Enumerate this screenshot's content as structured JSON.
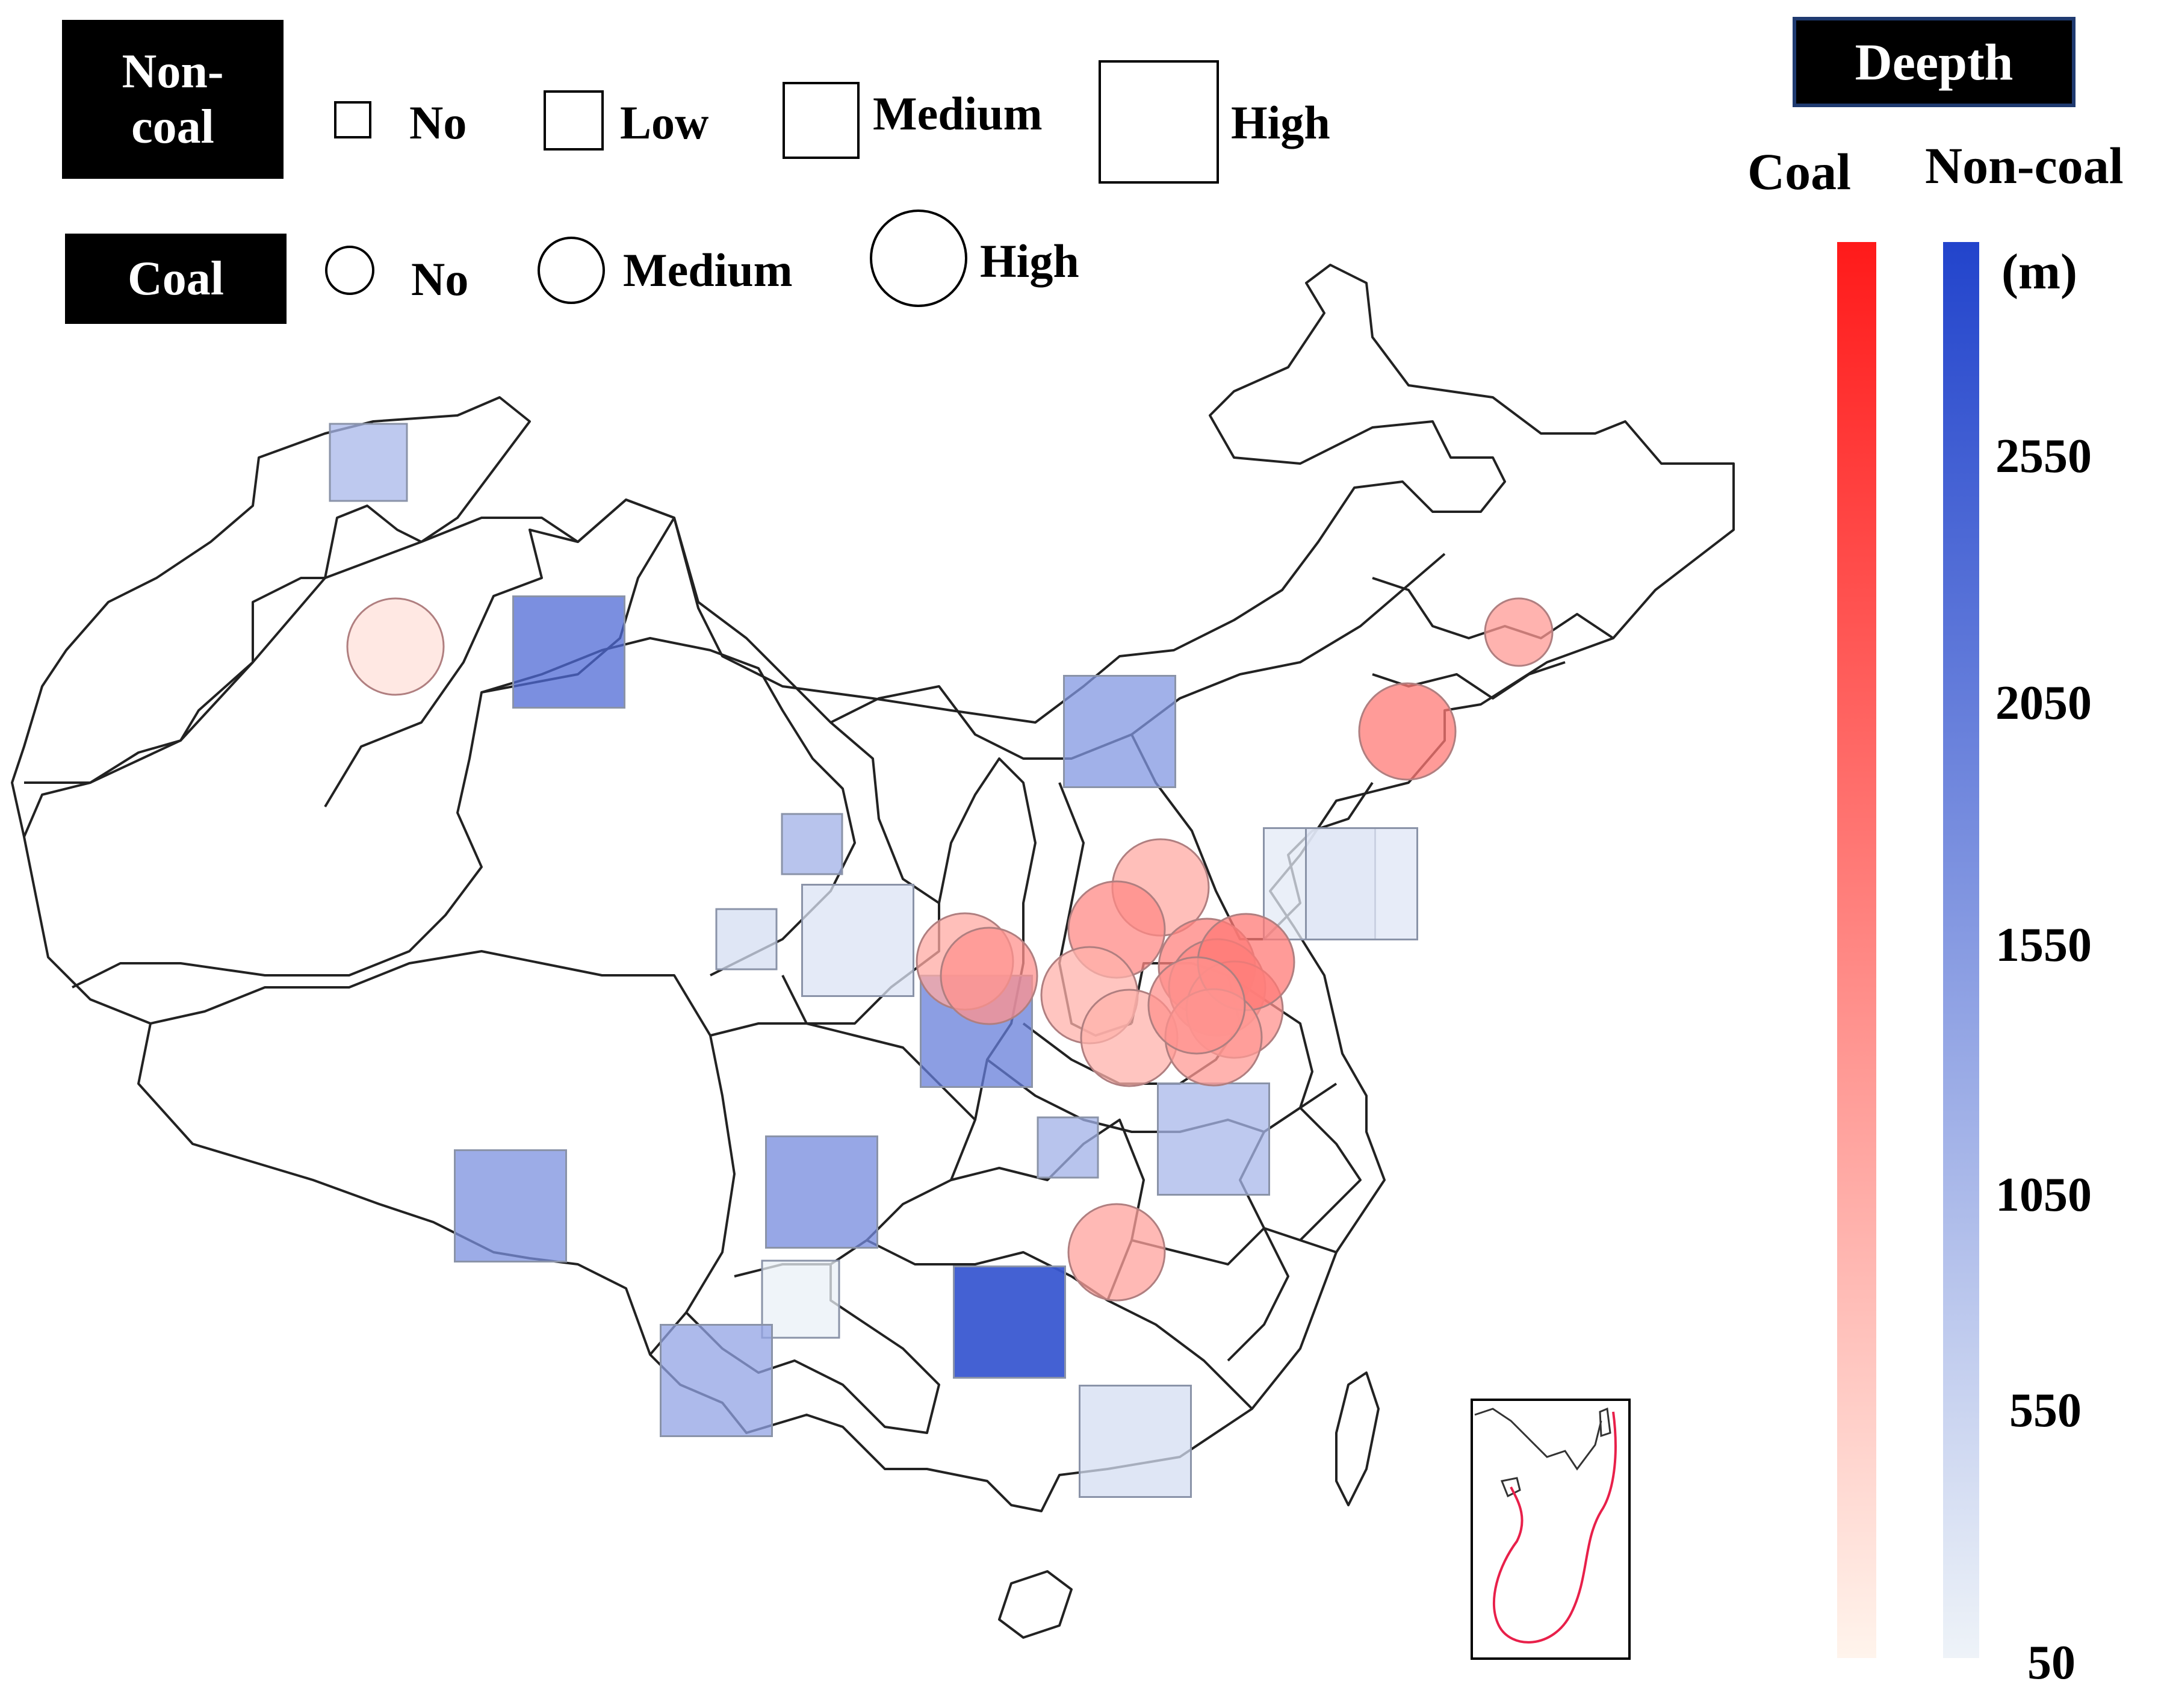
{
  "legend": {
    "noncoal_title": "Non-\ncoal",
    "coal_title": "Coal",
    "noncoal_levels": [
      "No",
      "Low",
      "Medium",
      "High"
    ],
    "coal_levels": [
      "No",
      "Medium",
      "High"
    ]
  },
  "colorbar": {
    "title": "Deepth",
    "coal_label": "Coal",
    "noncoal_label": "Non-coal",
    "unit": "(m)",
    "ticks": [
      "2550",
      "2050",
      "1550",
      "1050",
      "550",
      "50"
    ],
    "coal_color_max": "#ff1a1a",
    "coal_color_min": "#fff4ec",
    "noncoal_color_max": "#2244cc",
    "noncoal_color_min": "#eef3f8"
  },
  "inset": {
    "line_color": "#e8204a"
  },
  "markers": {
    "noncoal": [
      {
        "level": "Medium",
        "depth": 1000
      },
      {
        "level": "High",
        "depth": 2200
      },
      {
        "level": "High",
        "depth": 1500
      },
      {
        "level": "Low",
        "depth": 1100
      },
      {
        "level": "Low",
        "depth": 400
      },
      {
        "level": "High",
        "depth": 300
      },
      {
        "level": "High",
        "depth": 1900
      },
      {
        "level": "High",
        "depth": 200
      },
      {
        "level": "High",
        "depth": 250
      },
      {
        "level": "High",
        "depth": 1000
      },
      {
        "level": "Low",
        "depth": 1100
      },
      {
        "level": "High",
        "depth": 1700
      },
      {
        "level": "High",
        "depth": 2200
      },
      {
        "level": "High",
        "depth": 1600
      },
      {
        "level": "Medium",
        "depth": 100
      },
      {
        "level": "High",
        "depth": 2600
      },
      {
        "level": "High",
        "depth": 1300
      },
      {
        "level": "High",
        "depth": 400
      }
    ],
    "coal": [
      {
        "level": "High",
        "depth": 300
      },
      {
        "level": "Medium",
        "depth": 1200
      },
      {
        "level": "High",
        "depth": 1600
      },
      {
        "level": "High",
        "depth": 1000
      },
      {
        "level": "High",
        "depth": 1400
      },
      {
        "level": "High",
        "depth": 900
      },
      {
        "level": "High",
        "depth": 900
      },
      {
        "level": "High",
        "depth": 1000
      },
      {
        "level": "High",
        "depth": 1300
      },
      {
        "level": "High",
        "depth": 1500
      },
      {
        "level": "High",
        "depth": 1400
      },
      {
        "level": "High",
        "depth": 1300
      },
      {
        "level": "High",
        "depth": 1600
      },
      {
        "level": "High",
        "depth": 1200
      },
      {
        "level": "High",
        "depth": 1100
      },
      {
        "level": "High",
        "depth": 1300
      }
    ]
  }
}
